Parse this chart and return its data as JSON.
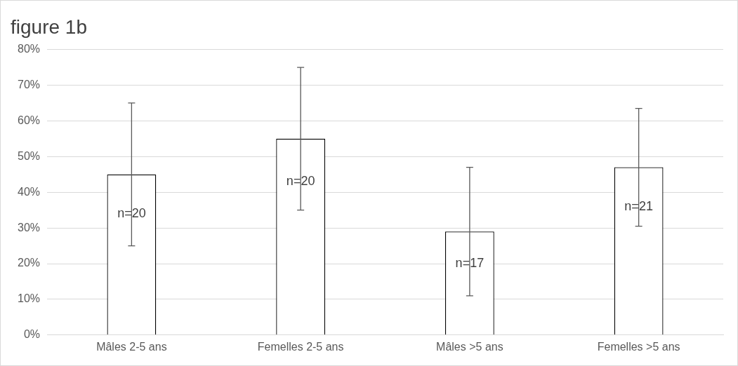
{
  "chart_data": {
    "type": "bar",
    "title": "figure 1b",
    "categories": [
      "Mâles 2-5 ans",
      "Femelles 2-5 ans",
      "Mâles >5 ans",
      "Femelles >5 ans"
    ],
    "values": [
      45,
      55,
      29,
      47
    ],
    "errors": [
      [
        25,
        65
      ],
      [
        35,
        75
      ],
      [
        11,
        47
      ],
      [
        30.5,
        63.5
      ]
    ],
    "color": "#ffffff",
    "ylim": [
      0,
      80
    ],
    "yticks": [
      {
        "value": 0,
        "label": "0%"
      },
      {
        "value": 10,
        "label": "10%"
      },
      {
        "value": 20,
        "label": "20%"
      },
      {
        "value": 30,
        "label": "30%"
      },
      {
        "value": 40,
        "label": "40%"
      },
      {
        "value": 50,
        "label": "50%"
      },
      {
        "value": 60,
        "label": "60%"
      },
      {
        "value": 70,
        "label": "70%"
      },
      {
        "value": 80,
        "label": "80%"
      }
    ],
    "grid": "y",
    "legend": false,
    "annotations": [
      {
        "text": "n=20",
        "x": "Mâles 2-5 ans",
        "y": 34
      },
      {
        "text": "n=20",
        "x": "Femelles 2-5 ans",
        "y": 43
      },
      {
        "text": "n=17",
        "x": "Mâles >5 ans",
        "y": 20
      },
      {
        "text": "n=21",
        "x": "Femelles >5 ans",
        "y": 36
      }
    ]
  }
}
